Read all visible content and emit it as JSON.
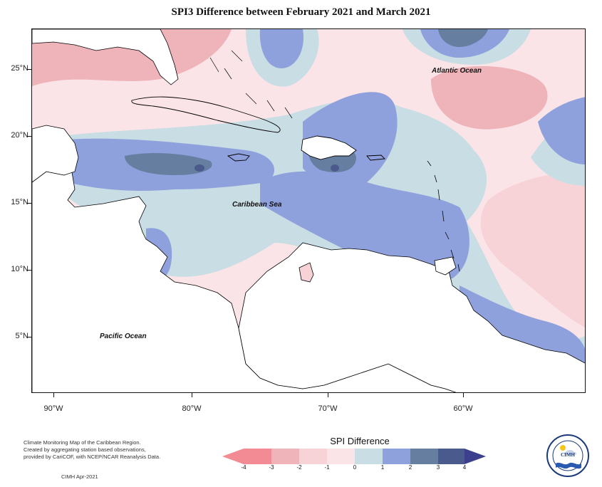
{
  "title": "SPI3 Difference between February 2021 and March 2021",
  "map": {
    "lat_labels": [
      "25°N",
      "20°N",
      "15°N",
      "10°N",
      "5°N"
    ],
    "lon_labels": [
      "90°W",
      "80°W",
      "70°W",
      "60°W"
    ],
    "ocean_labels": {
      "atlantic": "Atlantic Ocean",
      "caribbean": "Caribbean Sea",
      "pacific": "Pacific Ocean"
    },
    "colors": {
      "ocean_base": "#fbe4e7",
      "wet_light": "#c9dde4",
      "wet_mid": "#8fa1dc",
      "wet_dark": "#667fa0",
      "wet_darkest": "#4a5a8c",
      "dry_light": "#f7d3d8",
      "dry_mid": "#efb3ba",
      "land": "#ffffff",
      "coast": "#000000"
    }
  },
  "legend": {
    "title": "SPI Difference",
    "ticks": [
      "-4",
      "-3",
      "-2",
      "-1",
      "0",
      "1",
      "2",
      "3",
      "4"
    ],
    "colors": [
      "#f28b93",
      "#efb3ba",
      "#f7d3d8",
      "#fbe4e7",
      "#c9dde4",
      "#8fa1dc",
      "#667fa0",
      "#4a5a8c"
    ]
  },
  "footer": {
    "line1": "Climate Monitoring Map of the Caribbean Region.",
    "line2": "Created by aggregating station based observations,",
    "line3": "provided by CariCOF, with NCEP/NCAR Reanalysis Data.",
    "credit": "CIMH Apr-2021"
  },
  "logo": {
    "name": "CIMH"
  }
}
